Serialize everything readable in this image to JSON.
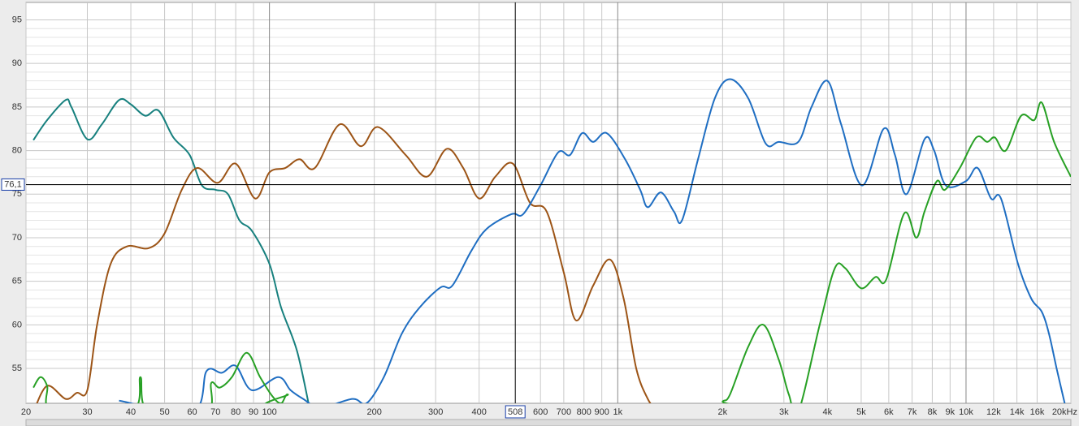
{
  "chart_data": {
    "type": "line",
    "xscale": "log",
    "grid": true,
    "xlim": [
      20,
      20000
    ],
    "ylim": [
      51,
      97
    ],
    "yticks": [
      55,
      60,
      65,
      70,
      75,
      80,
      85,
      90,
      95
    ],
    "xticks": [
      20,
      30,
      40,
      50,
      60,
      70,
      80,
      90,
      100,
      200,
      300,
      400,
      600,
      700,
      800,
      900,
      {
        "value": 1000,
        "label": "1k"
      },
      {
        "value": 2000,
        "label": "2k"
      },
      {
        "value": 3000,
        "label": "3k"
      },
      {
        "value": 4000,
        "label": "4k"
      },
      {
        "value": 5000,
        "label": "5k"
      },
      {
        "value": 6000,
        "label": "6k"
      },
      {
        "value": 7000,
        "label": "7k"
      },
      {
        "value": 8000,
        "label": "8k"
      },
      {
        "value": 9000,
        "label": "9k"
      },
      {
        "value": 10000,
        "label": "10k"
      },
      {
        "value": 12000,
        "label": "12k"
      },
      {
        "value": 14000,
        "label": "14k"
      },
      {
        "value": 16000,
        "label": "16k"
      },
      {
        "value": 20000,
        "label": "20kHz"
      }
    ],
    "cursor": {
      "x": {
        "value": 508,
        "label": "508"
      },
      "y": {
        "value": 76.1,
        "label": "76,1"
      }
    },
    "series": [
      {
        "color": "#17807e",
        "x": [
          21,
          23,
          26,
          27,
          30,
          33,
          37,
          40,
          44,
          48,
          53,
          59,
          64,
          70,
          76,
          82,
          89,
          100,
          108,
          120,
          131
        ],
        "values": [
          81.2,
          83.5,
          85.8,
          85,
          81.3,
          83,
          85.8,
          85.3,
          84,
          84.6,
          81.5,
          79.5,
          76,
          75.5,
          75,
          72,
          70.8,
          67,
          62,
          57,
          50
        ]
      },
      {
        "color": "#9c5416",
        "x": [
          21,
          23,
          26,
          28,
          30,
          32,
          35,
          39,
          45,
          50,
          56,
          62,
          71,
          80,
          91,
          100,
          111,
          122,
          135,
          159,
          183,
          205,
          246,
          283,
          323,
          360,
          400,
          445,
          500,
          560,
          625,
          700,
          760,
          850,
          950,
          1040,
          1130,
          1220,
          1300
        ],
        "values": [
          50,
          53,
          51.5,
          52.2,
          52.5,
          60,
          67,
          69,
          68.8,
          70.5,
          75.5,
          78,
          76.3,
          78.5,
          74.5,
          77.5,
          78,
          79,
          78,
          83,
          80.5,
          82.7,
          79.5,
          77,
          80.2,
          78,
          74.5,
          77,
          78.5,
          74,
          73,
          66,
          60.5,
          64.5,
          67.5,
          63,
          55,
          51.5,
          50
        ]
      },
      {
        "color": "#1f6ec2",
        "x": [
          37,
          60,
          66,
          73,
          80,
          89,
          106,
          115,
          125,
          140,
          173,
          190,
          213,
          240,
          270,
          310,
          335,
          380,
          420,
          495,
          535,
          600,
          675,
          730,
          790,
          850,
          930,
          1050,
          1160,
          1220,
          1330,
          1450,
          1530,
          1700,
          1900,
          2100,
          2370,
          2660,
          2900,
          3300,
          3600,
          4000,
          4380,
          5030,
          5800,
          6250,
          6750,
          7600,
          8100,
          8750,
          10000,
          10800,
          11800,
          12600,
          14100,
          15400,
          16500,
          17300,
          18200,
          19200
        ],
        "values": [
          51.3,
          50,
          54.7,
          54.5,
          55.3,
          52.5,
          54,
          52.5,
          51.5,
          50.5,
          51.5,
          51,
          54,
          59,
          62,
          64.3,
          64.5,
          68.5,
          71,
          72.7,
          72.7,
          76,
          79.8,
          79.5,
          82,
          81,
          82,
          79,
          75.5,
          73.5,
          75.2,
          73,
          72,
          79,
          86,
          88.2,
          86,
          80.8,
          81,
          81,
          85,
          88,
          83,
          76,
          82.5,
          79.5,
          75,
          81.3,
          80,
          76,
          76.5,
          78,
          74.5,
          74.5,
          67,
          63,
          61.5,
          59,
          55,
          51
        ]
      },
      {
        "color": "#27a024",
        "x": [
          21,
          22,
          23,
          24,
          40,
          42.6,
          45,
          66,
          68,
          72,
          78,
          86,
          94,
          102,
          108,
          113,
          120,
          1900,
          2000,
          2100,
          2370,
          2620,
          2900,
          3100,
          3300,
          3800,
          4200,
          4500,
          5000,
          5500,
          5900,
          6650,
          7200,
          7600,
          8250,
          8700,
          9600,
          10700,
          11500,
          12100,
          13000,
          14400,
          15700,
          16500,
          17900,
          20000
        ],
        "values": [
          52.8,
          54,
          53,
          50,
          50,
          54,
          50,
          50,
          53.3,
          52.8,
          54,
          56.8,
          54,
          51.8,
          51,
          52,
          50,
          50,
          51.2,
          52,
          57.5,
          60,
          56,
          52,
          50,
          60,
          66.5,
          66.5,
          64.2,
          65.5,
          65.2,
          72.8,
          70,
          73,
          76.5,
          75.5,
          78,
          81.5,
          81,
          81.5,
          80,
          84,
          83.5,
          85.5,
          81,
          77
        ]
      }
    ]
  }
}
